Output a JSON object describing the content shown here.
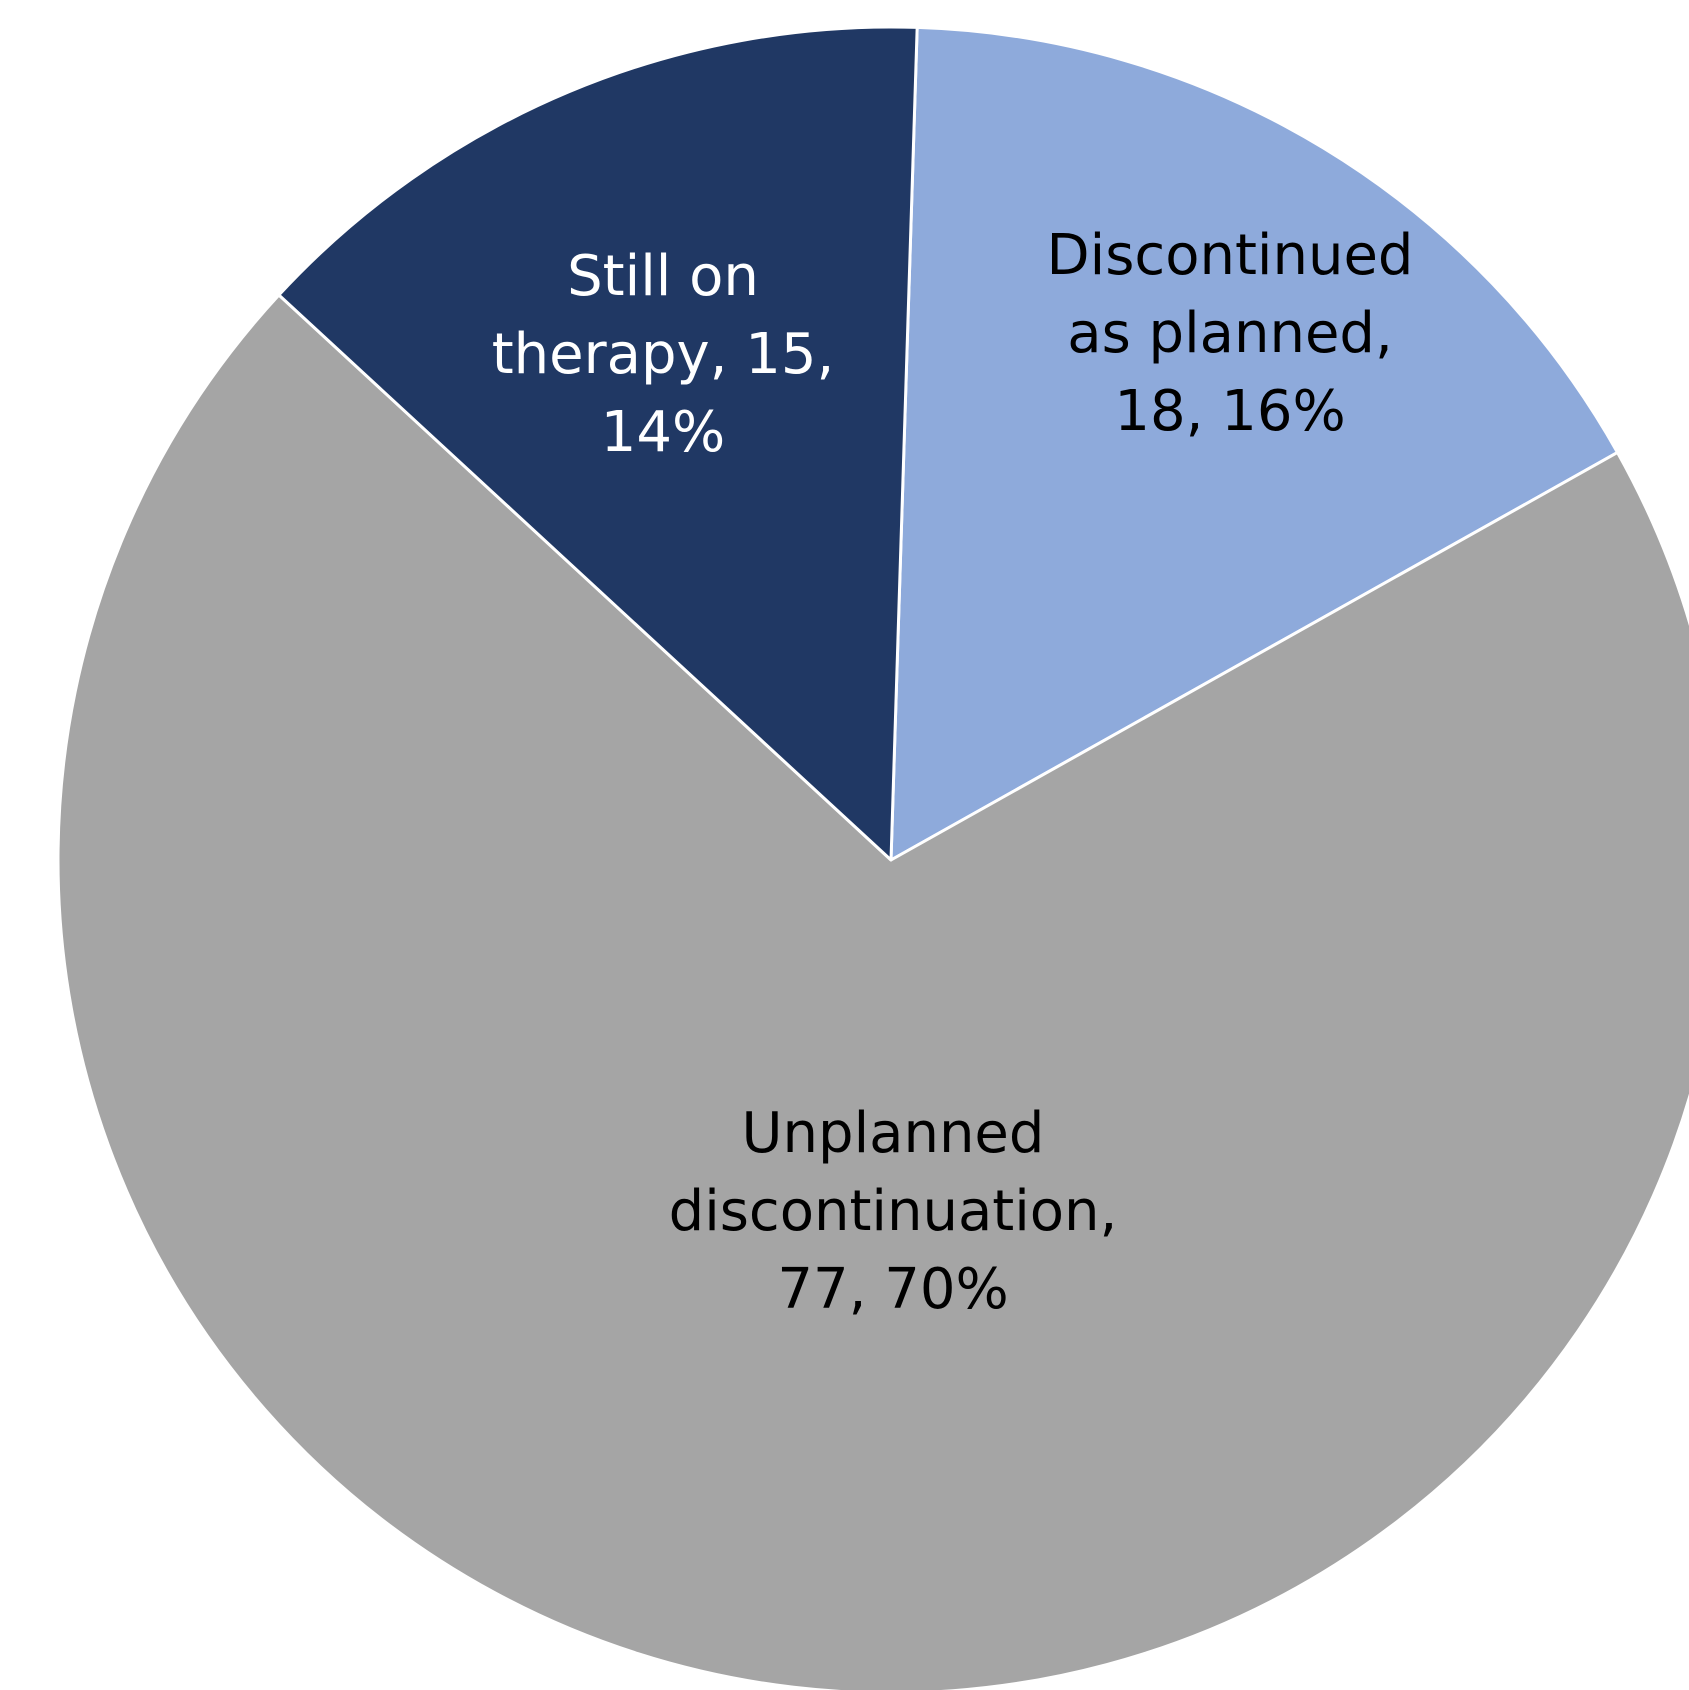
{
  "chart_data": {
    "type": "pie",
    "start_angle_deg": 1.8,
    "direction": "clockwise",
    "slices": [
      {
        "label": "Discontinued as planned",
        "value": 18,
        "percent": "16%",
        "color": "#8eaadb",
        "label_color": "#000000",
        "label_lines": [
          "Discontinued",
          "as planned,",
          "18, 16%"
        ]
      },
      {
        "label": "Unplanned discontinuation",
        "value": 77,
        "percent": "70%",
        "color": "#a5a5a5",
        "label_color": "#000000",
        "label_lines": [
          "Unplanned",
          "discontinuation,",
          "77, 70%"
        ]
      },
      {
        "label": "Still on therapy",
        "value": 15,
        "percent": "14%",
        "color": "#203864",
        "label_color": "#ffffff",
        "label_lines": [
          "Still on",
          "therapy, 15,",
          "14%"
        ]
      }
    ],
    "slice_border_color": "#ffffff"
  }
}
